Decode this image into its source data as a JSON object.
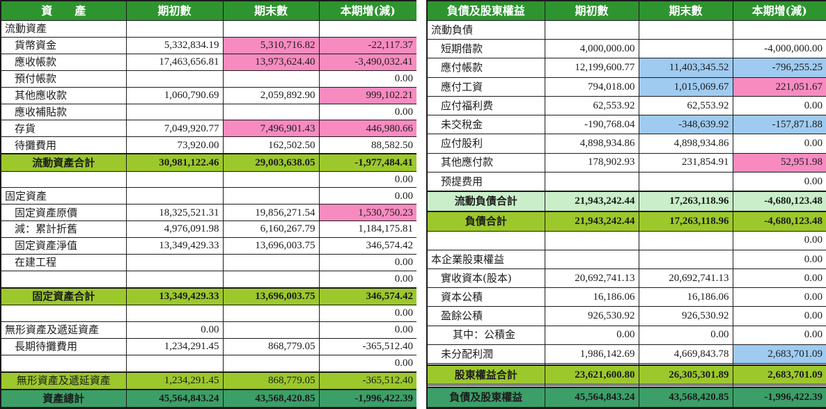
{
  "colors": {
    "header_green": "#2E9430",
    "subtotal_lime": "#9CC82C",
    "subtotal_pale_green": "#C9EEC9",
    "total_sea_green": "#3C9F68",
    "highlight_pink": "#F78BC0",
    "highlight_blue": "#9FCBF1"
  },
  "left_table": {
    "headers": [
      "資　　產",
      "期初數",
      "期末數",
      "本期增(減)"
    ],
    "rows": [
      {
        "label": "流動資產",
        "ind": 0,
        "v": [
          "",
          "",
          ""
        ],
        "style": "section"
      },
      {
        "label": "貨幣資金",
        "ind": 1,
        "v": [
          "5,332,834.19",
          "5,310,716.82",
          "-22,117.37"
        ],
        "bg": [
          "",
          "p",
          "p"
        ]
      },
      {
        "label": "應收帳款",
        "ind": 1,
        "v": [
          "17,463,656.81",
          "13,973,624.40",
          "-3,490,032.41"
        ],
        "bg": [
          "",
          "p",
          "p"
        ]
      },
      {
        "label": "預付帳款",
        "ind": 1,
        "v": [
          "",
          "",
          "0.00"
        ]
      },
      {
        "label": "其他應收款",
        "ind": 1,
        "v": [
          "1,060,790.69",
          "2,059,892.90",
          "999,102.21"
        ],
        "bg": [
          "",
          "",
          "p"
        ]
      },
      {
        "label": "應收補貼款",
        "ind": 1,
        "v": [
          "",
          "",
          "0.00"
        ]
      },
      {
        "label": "存貨",
        "ind": 1,
        "v": [
          "7,049,920.77",
          "7,496,901.43",
          "446,980.66"
        ],
        "bg": [
          "",
          "p",
          "p"
        ]
      },
      {
        "label": "待攤費用",
        "ind": 1,
        "v": [
          "73,920.00",
          "162,502.50",
          "88,582.50"
        ]
      },
      {
        "label": "流動資產合計",
        "v": [
          "30,981,122.46",
          "29,003,638.05",
          "-1,977,484.41"
        ],
        "style": "subtotal"
      },
      {
        "label": "",
        "v": [
          "",
          "",
          "0.00"
        ]
      },
      {
        "label": "固定資產",
        "ind": 0,
        "v": [
          "",
          "",
          "0.00"
        ],
        "style": "section"
      },
      {
        "label": "固定資產原價",
        "ind": 1,
        "v": [
          "18,325,521.31",
          "19,856,271.54",
          "1,530,750.23"
        ],
        "bg": [
          "",
          "",
          "p"
        ]
      },
      {
        "label": "減：累計折舊",
        "ind": 1,
        "v": [
          "4,976,091.98",
          "6,160,267.79",
          "1,184,175.81"
        ]
      },
      {
        "label": "固定資產淨值",
        "ind": 1,
        "v": [
          "13,349,429.33",
          "13,696,003.75",
          "346,574.42"
        ]
      },
      {
        "label": "在建工程",
        "ind": 1,
        "v": [
          "",
          "",
          "0.00"
        ]
      },
      {
        "label": "",
        "v": [
          "",
          "",
          "0.00"
        ]
      },
      {
        "label": "固定資產合計",
        "v": [
          "13,349,429.33",
          "13,696,003.75",
          "346,574.42"
        ],
        "style": "subtotal"
      },
      {
        "label": "",
        "v": [
          "",
          "",
          "0.00"
        ]
      },
      {
        "label": "無形資產及遞延資產",
        "ind": 0,
        "v": [
          "0.00",
          "",
          "0.00"
        ],
        "style": "section"
      },
      {
        "label": "長期待攤費用",
        "ind": 1,
        "v": [
          "1,234,291.45",
          "868,779.05",
          "-365,512.40"
        ]
      },
      {
        "label": "",
        "v": [
          "",
          "",
          "0.00"
        ]
      },
      {
        "label": "無形資產及遞延資產",
        "v": [
          "1,234,291.45",
          "868,779.05",
          "-365,512.40"
        ],
        "style": "subtotal_plain"
      },
      {
        "label": "資產總計",
        "v": [
          "45,564,843.24",
          "43,568,420.85",
          "-1,996,422.39"
        ],
        "style": "total"
      }
    ]
  },
  "right_table": {
    "headers": [
      "負債及股東權益",
      "期初數",
      "期末數",
      "本期增(減)"
    ],
    "rows": [
      {
        "label": "流動負債",
        "ind": 0,
        "v": [
          "",
          "",
          ""
        ],
        "style": "section"
      },
      {
        "label": "短期借款",
        "ind": 1,
        "v": [
          "4,000,000.00",
          "",
          "-4,000,000.00"
        ]
      },
      {
        "label": "應付帳款",
        "ind": 1,
        "v": [
          "12,199,600.77",
          "11,403,345.52",
          "-796,255.25"
        ],
        "bg": [
          "",
          "b",
          "b"
        ]
      },
      {
        "label": "應付工資",
        "ind": 1,
        "v": [
          "794,018.00",
          "1,015,069.67",
          "221,051.67"
        ],
        "bg": [
          "",
          "b",
          "p"
        ]
      },
      {
        "label": "应付福利费",
        "ind": 1,
        "v": [
          "62,553.92",
          "62,553.92",
          "0.00"
        ]
      },
      {
        "label": "未交稅金",
        "ind": 1,
        "v": [
          "-190,768.04",
          "-348,639.92",
          "-157,871.88"
        ],
        "bg": [
          "",
          "b",
          "b"
        ]
      },
      {
        "label": "应付股利",
        "ind": 1,
        "v": [
          "4,898,934.86",
          "4,898,934.86",
          "0.00"
        ]
      },
      {
        "label": "其他應付款",
        "ind": 1,
        "v": [
          "178,902.93",
          "231,854.91",
          "52,951.98"
        ],
        "bg": [
          "",
          "",
          "p"
        ]
      },
      {
        "label": "预提费用",
        "ind": 1,
        "v": [
          "",
          "",
          "0.00"
        ]
      },
      {
        "label": "流動負債合計",
        "v": [
          "21,943,242.44",
          "17,263,118.96",
          "-4,680,123.48"
        ],
        "style": "subtotal_light"
      },
      {
        "label": "負債合計",
        "v": [
          "21,943,242.44",
          "17,263,118.96",
          "-4,680,123.48"
        ],
        "style": "subtotal"
      },
      {
        "label": "",
        "v": [
          "",
          "",
          "0.00"
        ]
      },
      {
        "label": "本企業股東權益",
        "ind": 0,
        "v": [
          "",
          "",
          "0.00"
        ],
        "style": "section"
      },
      {
        "label": "實收資本(股本)",
        "ind": 1,
        "v": [
          "20,692,741.13",
          "20,692,741.13",
          "0.00"
        ]
      },
      {
        "label": "資本公積",
        "ind": 1,
        "v": [
          "16,186.06",
          "16,186.06",
          "0.00"
        ]
      },
      {
        "label": "盈餘公積",
        "ind": 1,
        "v": [
          "926,530.92",
          "926,530.92",
          "0.00"
        ]
      },
      {
        "label": "其中：公積金",
        "ind": 2,
        "v": [
          "0.00",
          "0.00",
          "0.00"
        ]
      },
      {
        "label": "未分配利潤",
        "ind": 1,
        "v": [
          "1,986,142.69",
          "4,669,843.78",
          "2,683,701.09"
        ],
        "bg": [
          "",
          "",
          "b"
        ]
      },
      {
        "label": "",
        "v": [
          "",
          "",
          ""
        ]
      },
      {
        "label": "股東權益合計",
        "v": [
          "23,621,600.80",
          "26,305,301.89",
          "2,683,701.09"
        ],
        "style": "subtotal"
      },
      {
        "label": "",
        "v": [
          "",
          "",
          ""
        ]
      },
      {
        "label": "",
        "v": [
          "",
          "",
          ""
        ]
      },
      {
        "label": "負債及股東權益",
        "v": [
          "45,564,843.24",
          "43,568,420.85",
          "-1,996,422.39"
        ],
        "style": "total"
      }
    ]
  }
}
